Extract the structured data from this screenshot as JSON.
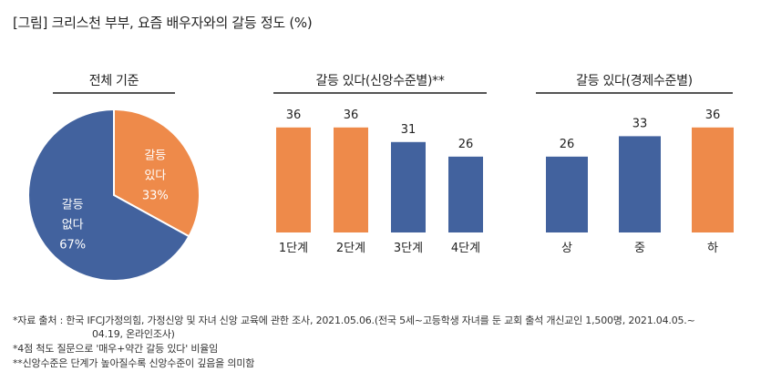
{
  "title": "[그림] 크리스천 부부, 요즘 배우자와의 갈등 정도 (%)",
  "colors": {
    "orange": "#EE8A4A",
    "blue": "#42629E",
    "line": "#555555"
  },
  "chart_data": [
    {
      "type": "pie",
      "title": "전체 기준",
      "slices": [
        {
          "label_line1": "갈등",
          "label_line2": "있다",
          "value": 33,
          "value_text": "33%",
          "color": "#EE8A4A"
        },
        {
          "label_line1": "갈등",
          "label_line2": "없다",
          "value": 67,
          "value_text": "67%",
          "color": "#42629E"
        }
      ]
    },
    {
      "type": "bar",
      "title": "갈등 있다(신앙수준별)**",
      "categories": [
        "1단계",
        "2단계",
        "3단계",
        "4단계"
      ],
      "values": [
        36,
        36,
        31,
        26
      ],
      "colors": [
        "#EE8A4A",
        "#EE8A4A",
        "#42629E",
        "#42629E"
      ],
      "ylim": [
        0,
        40
      ]
    },
    {
      "type": "bar",
      "title": "갈등 있다(경제수준별)",
      "categories": [
        "상",
        "중",
        "하"
      ],
      "values": [
        26,
        33,
        36
      ],
      "colors": [
        "#42629E",
        "#42629E",
        "#EE8A4A"
      ],
      "ylim": [
        0,
        40
      ]
    }
  ],
  "notes": {
    "line1": "*자료 출처 : 한국 IFCJ가정의힘, 가정신앙 및 자녀 신앙 교육에 관한 조사, 2021.05.06.(전국 5세~고등학생 자녀를 둔 교회 출석 개신교인 1,500명, 2021.04.05.~",
    "line2": "04.19, 온라인조사)",
    "line3": "*4점 척도 질문으로 '매우+약간 갈등 있다' 비율임",
    "line4": "**신앙수준은 단계가 높아질수록 신앙수준이 깊음을 의미함"
  }
}
